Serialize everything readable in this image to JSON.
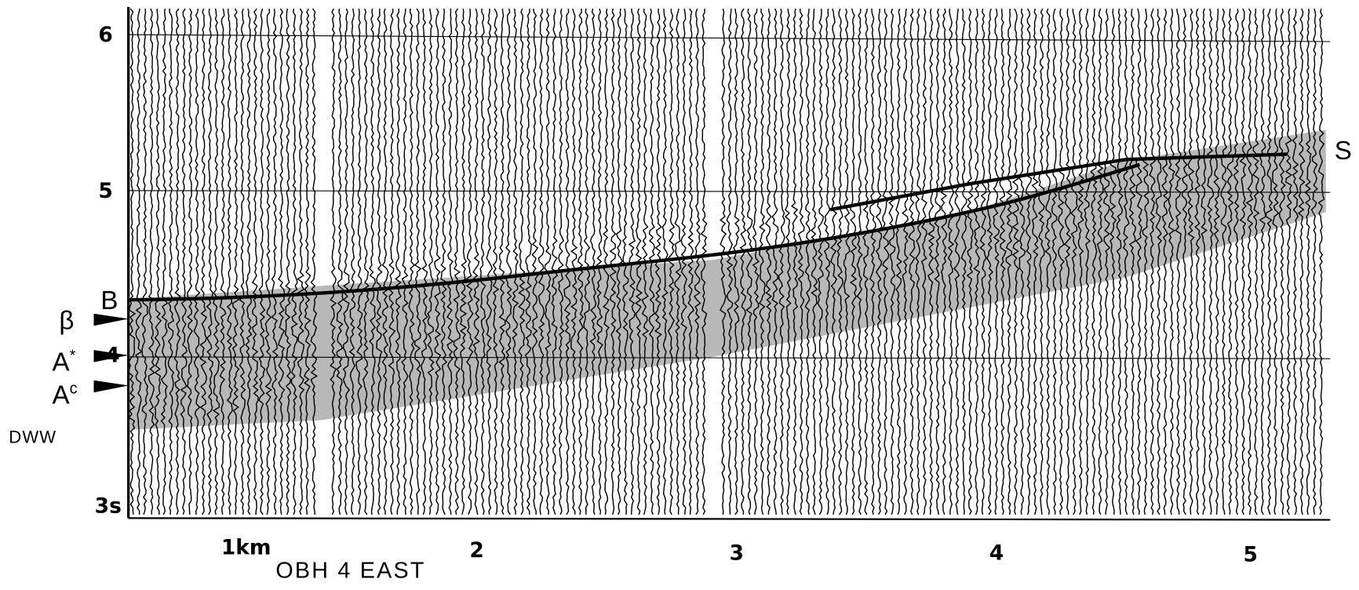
{
  "y_axis": {
    "ticks": [
      "6",
      "5",
      "4",
      "3s"
    ]
  },
  "x_axis": {
    "ticks": [
      "1km",
      "2",
      "3",
      "4",
      "5"
    ],
    "caption": "OBH 4 EAST"
  },
  "phases": {
    "B": "B",
    "beta": "β",
    "A_star": "A",
    "A_star_sup": "*",
    "A_c": "A",
    "A_c_sup": "c",
    "DWW": "DWW",
    "S": "S"
  }
}
